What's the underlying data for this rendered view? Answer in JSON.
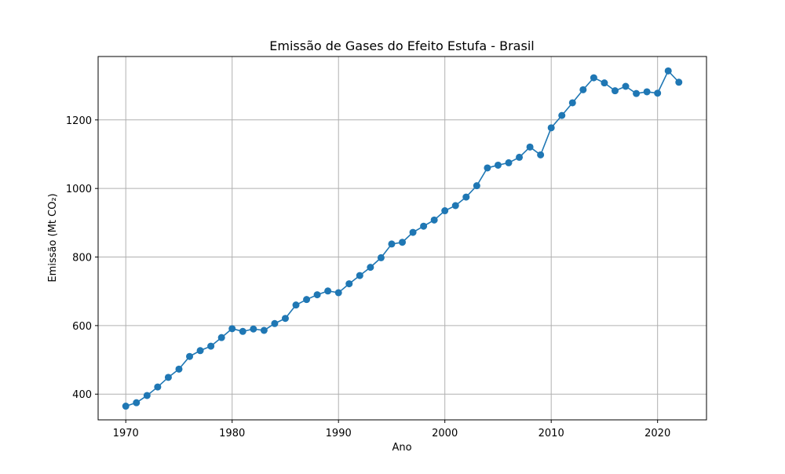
{
  "chart_data": {
    "type": "line",
    "title": "Emissão de Gases do Efeito Estufa - Brasil",
    "xlabel": "Ano",
    "ylabel": "Emissão (Mt CO₂)",
    "xlim": [
      1967.4,
      2024.6
    ],
    "ylim": [
      325,
      1385
    ],
    "xticks": [
      1970,
      1980,
      1990,
      2000,
      2010,
      2020
    ],
    "yticks": [
      400,
      600,
      800,
      1000,
      1200
    ],
    "grid": true,
    "legend": "none",
    "colors": {
      "line": "#1f77b4",
      "marker": "#1f77b4",
      "grid": "#b0b0b0",
      "axes": "#000000"
    },
    "series": [
      {
        "x": [
          1970,
          1971,
          1972,
          1973,
          1974,
          1975,
          1976,
          1977,
          1978,
          1979,
          1980,
          1981,
          1982,
          1983,
          1984,
          1985,
          1986,
          1987,
          1988,
          1989,
          1990,
          1991,
          1992,
          1993,
          1994,
          1995,
          1996,
          1997,
          1998,
          1999,
          2000,
          2001,
          2002,
          2003,
          2004,
          2005,
          2006,
          2007,
          2008,
          2009,
          2010,
          2011,
          2012,
          2013,
          2014,
          2015,
          2016,
          2017,
          2018,
          2019,
          2020,
          2021,
          2022
        ],
        "values": [
          365,
          375,
          396,
          421,
          449,
          473,
          510,
          527,
          540,
          565,
          591,
          583,
          590,
          586,
          606,
          621,
          660,
          676,
          690,
          701,
          696,
          722,
          746,
          770,
          798,
          838,
          843,
          872,
          890,
          908,
          935,
          950,
          975,
          1008,
          1060,
          1068,
          1075,
          1091,
          1121,
          1098,
          1177,
          1213,
          1250,
          1288,
          1323,
          1308,
          1285,
          1298,
          1277,
          1282,
          1278,
          1343,
          1310
        ]
      }
    ]
  }
}
